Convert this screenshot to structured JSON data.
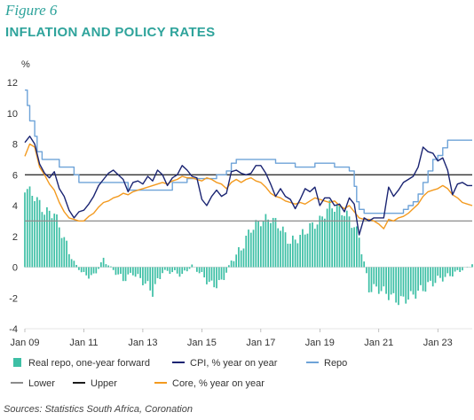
{
  "figure_label": "Figure 6",
  "title": "INFLATION AND POLICY RATES",
  "source": "Sources: Statistics South Africa, Coronation",
  "colors": {
    "bars": "#3dbfa5",
    "cpi": "#1a2472",
    "repo": "#6ea3d8",
    "lower": "#8c8c8c",
    "upper": "#1c1c1c",
    "core": "#f39a1f",
    "title": "#2ea39b"
  },
  "chart_data": {
    "type": "line",
    "title": "INFLATION AND POLICY RATES",
    "ylabel": "%",
    "ylim": [
      -4,
      12
    ],
    "yticks": [
      -4,
      -2,
      0,
      2,
      4,
      6,
      8,
      10,
      12
    ],
    "xlim": [
      "2009-01",
      "2024-03"
    ],
    "xticks": [
      "Jan 09",
      "Jan 11",
      "Jan 13",
      "Jan 15",
      "Jan 17",
      "Jan 19",
      "Jan 21",
      "Jan 23"
    ],
    "grid": false,
    "legend_position": "bottom",
    "reference_lines": [
      {
        "name": "Lower",
        "value": 3
      },
      {
        "name": "Upper",
        "value": 6
      }
    ],
    "series": [
      {
        "name": "Real repo, one-year forward",
        "type": "bar",
        "points": [
          [
            "2009-01",
            5.2
          ],
          [
            "2009-05",
            4.6
          ],
          [
            "2009-09",
            3.6
          ],
          [
            "2010-01",
            3.5
          ],
          [
            "2010-05",
            1.8
          ],
          [
            "2010-09",
            0.3
          ],
          [
            "2011-01",
            -0.5
          ],
          [
            "2011-05",
            -0.6
          ],
          [
            "2011-09",
            0.5
          ],
          [
            "2012-01",
            -0.2
          ],
          [
            "2012-05",
            -0.8
          ],
          [
            "2012-09",
            -0.4
          ],
          [
            "2013-01",
            -0.9
          ],
          [
            "2013-05",
            -1.6
          ],
          [
            "2013-09",
            -0.3
          ],
          [
            "2014-01",
            -0.3
          ],
          [
            "2014-05",
            -0.5
          ],
          [
            "2014-09",
            0.1
          ],
          [
            "2015-01",
            -0.5
          ],
          [
            "2015-05",
            -1.2
          ],
          [
            "2015-09",
            -1.0
          ],
          [
            "2016-01",
            0.4
          ],
          [
            "2016-05",
            1.2
          ],
          [
            "2016-09",
            2.5
          ],
          [
            "2017-01",
            3.0
          ],
          [
            "2017-05",
            3.2
          ],
          [
            "2017-09",
            2.6
          ],
          [
            "2018-01",
            1.6
          ],
          [
            "2018-05",
            2.0
          ],
          [
            "2018-09",
            2.6
          ],
          [
            "2019-01",
            3.0
          ],
          [
            "2019-05",
            4.0
          ],
          [
            "2019-09",
            3.8
          ],
          [
            "2020-01",
            3.2
          ],
          [
            "2020-05",
            2.0
          ],
          [
            "2020-09",
            -1.4
          ],
          [
            "2021-01",
            -1.4
          ],
          [
            "2021-05",
            -1.8
          ],
          [
            "2021-09",
            -2.2
          ],
          [
            "2022-01",
            -2.0
          ],
          [
            "2022-05",
            -1.6
          ],
          [
            "2022-09",
            -1.2
          ],
          [
            "2023-01",
            -0.8
          ],
          [
            "2023-05",
            -0.6
          ],
          [
            "2023-09",
            -0.3
          ],
          [
            "2024-01",
            0.0
          ],
          [
            "2024-03",
            0.2
          ]
        ]
      },
      {
        "name": "CPI, % year on year",
        "type": "line",
        "points": [
          [
            "2009-01",
            8.1
          ],
          [
            "2009-03",
            8.5
          ],
          [
            "2009-05",
            8.0
          ],
          [
            "2009-07",
            6.7
          ],
          [
            "2009-09",
            6.1
          ],
          [
            "2009-11",
            5.8
          ],
          [
            "2010-01",
            6.2
          ],
          [
            "2010-03",
            5.1
          ],
          [
            "2010-05",
            4.6
          ],
          [
            "2010-07",
            3.7
          ],
          [
            "2010-09",
            3.2
          ],
          [
            "2010-11",
            3.6
          ],
          [
            "2011-01",
            3.7
          ],
          [
            "2011-03",
            4.1
          ],
          [
            "2011-05",
            4.6
          ],
          [
            "2011-07",
            5.3
          ],
          [
            "2011-09",
            5.7
          ],
          [
            "2011-11",
            6.1
          ],
          [
            "2012-01",
            6.3
          ],
          [
            "2012-03",
            6.0
          ],
          [
            "2012-05",
            5.7
          ],
          [
            "2012-07",
            4.9
          ],
          [
            "2012-09",
            5.5
          ],
          [
            "2012-11",
            5.6
          ],
          [
            "2013-01",
            5.4
          ],
          [
            "2013-03",
            5.9
          ],
          [
            "2013-05",
            5.6
          ],
          [
            "2013-07",
            6.3
          ],
          [
            "2013-09",
            6.0
          ],
          [
            "2013-11",
            5.3
          ],
          [
            "2014-01",
            5.8
          ],
          [
            "2014-03",
            6.0
          ],
          [
            "2014-05",
            6.6
          ],
          [
            "2014-07",
            6.3
          ],
          [
            "2014-09",
            5.9
          ],
          [
            "2014-11",
            5.8
          ],
          [
            "2015-01",
            4.4
          ],
          [
            "2015-03",
            4.0
          ],
          [
            "2015-05",
            4.6
          ],
          [
            "2015-07",
            5.0
          ],
          [
            "2015-09",
            4.6
          ],
          [
            "2015-11",
            4.8
          ],
          [
            "2016-01",
            6.2
          ],
          [
            "2016-03",
            6.3
          ],
          [
            "2016-05",
            6.1
          ],
          [
            "2016-07",
            6.0
          ],
          [
            "2016-09",
            6.1
          ],
          [
            "2016-11",
            6.6
          ],
          [
            "2017-01",
            6.6
          ],
          [
            "2017-03",
            6.1
          ],
          [
            "2017-05",
            5.4
          ],
          [
            "2017-07",
            4.6
          ],
          [
            "2017-09",
            5.1
          ],
          [
            "2017-11",
            4.6
          ],
          [
            "2018-01",
            4.4
          ],
          [
            "2018-03",
            3.8
          ],
          [
            "2018-05",
            4.4
          ],
          [
            "2018-07",
            5.1
          ],
          [
            "2018-09",
            4.9
          ],
          [
            "2018-11",
            5.2
          ],
          [
            "2019-01",
            4.0
          ],
          [
            "2019-03",
            4.5
          ],
          [
            "2019-05",
            4.5
          ],
          [
            "2019-07",
            4.0
          ],
          [
            "2019-09",
            4.1
          ],
          [
            "2019-11",
            3.6
          ],
          [
            "2020-01",
            4.5
          ],
          [
            "2020-03",
            4.1
          ],
          [
            "2020-05",
            2.1
          ],
          [
            "2020-07",
            3.2
          ],
          [
            "2020-09",
            3.0
          ],
          [
            "2020-11",
            3.2
          ],
          [
            "2021-01",
            3.2
          ],
          [
            "2021-03",
            3.2
          ],
          [
            "2021-05",
            5.2
          ],
          [
            "2021-07",
            4.6
          ],
          [
            "2021-09",
            5.0
          ],
          [
            "2021-11",
            5.5
          ],
          [
            "2022-01",
            5.7
          ],
          [
            "2022-03",
            5.9
          ],
          [
            "2022-05",
            6.5
          ],
          [
            "2022-07",
            7.8
          ],
          [
            "2022-09",
            7.5
          ],
          [
            "2022-11",
            7.4
          ],
          [
            "2023-01",
            6.9
          ],
          [
            "2023-03",
            7.1
          ],
          [
            "2023-05",
            6.3
          ],
          [
            "2023-07",
            4.7
          ],
          [
            "2023-09",
            5.4
          ],
          [
            "2023-11",
            5.5
          ],
          [
            "2024-01",
            5.3
          ],
          [
            "2024-03",
            5.3
          ]
        ]
      },
      {
        "name": "Repo",
        "type": "line",
        "step": true,
        "points": [
          [
            "2009-01",
            11.5
          ],
          [
            "2009-02",
            10.5
          ],
          [
            "2009-03",
            9.5
          ],
          [
            "2009-05",
            8.5
          ],
          [
            "2009-06",
            7.5
          ],
          [
            "2009-08",
            7.0
          ],
          [
            "2010-03",
            6.5
          ],
          [
            "2010-09",
            6.0
          ],
          [
            "2010-11",
            5.5
          ],
          [
            "2012-07",
            5.0
          ],
          [
            "2014-01",
            5.5
          ],
          [
            "2014-07",
            5.75
          ],
          [
            "2015-07",
            6.0
          ],
          [
            "2015-11",
            6.25
          ],
          [
            "2016-01",
            6.75
          ],
          [
            "2016-03",
            7.0
          ],
          [
            "2017-07",
            6.75
          ],
          [
            "2018-03",
            6.5
          ],
          [
            "2018-11",
            6.75
          ],
          [
            "2019-07",
            6.5
          ],
          [
            "2020-01",
            6.25
          ],
          [
            "2020-03",
            5.25
          ],
          [
            "2020-04",
            4.25
          ],
          [
            "2020-05",
            3.75
          ],
          [
            "2020-07",
            3.5
          ],
          [
            "2021-11",
            3.75
          ],
          [
            "2022-01",
            4.0
          ],
          [
            "2022-03",
            4.25
          ],
          [
            "2022-05",
            4.75
          ],
          [
            "2022-07",
            5.5
          ],
          [
            "2022-09",
            6.25
          ],
          [
            "2022-11",
            7.0
          ],
          [
            "2023-01",
            7.25
          ],
          [
            "2023-03",
            7.75
          ],
          [
            "2023-05",
            8.25
          ],
          [
            "2024-03",
            8.25
          ]
        ]
      },
      {
        "name": "Core, % year on year",
        "type": "line",
        "points": [
          [
            "2009-01",
            7.2
          ],
          [
            "2009-03",
            8.0
          ],
          [
            "2009-05",
            7.8
          ],
          [
            "2009-07",
            6.5
          ],
          [
            "2009-09",
            6.0
          ],
          [
            "2009-11",
            5.4
          ],
          [
            "2010-01",
            5.0
          ],
          [
            "2010-03",
            4.2
          ],
          [
            "2010-05",
            3.6
          ],
          [
            "2010-07",
            3.2
          ],
          [
            "2010-09",
            3.1
          ],
          [
            "2010-11",
            3.0
          ],
          [
            "2011-01",
            3.0
          ],
          [
            "2011-03",
            3.3
          ],
          [
            "2011-05",
            3.5
          ],
          [
            "2011-07",
            3.9
          ],
          [
            "2011-09",
            4.2
          ],
          [
            "2011-11",
            4.3
          ],
          [
            "2012-01",
            4.5
          ],
          [
            "2012-03",
            4.6
          ],
          [
            "2012-05",
            4.8
          ],
          [
            "2012-07",
            4.7
          ],
          [
            "2012-09",
            4.9
          ],
          [
            "2012-11",
            5.0
          ],
          [
            "2013-01",
            5.1
          ],
          [
            "2013-03",
            5.2
          ],
          [
            "2013-05",
            5.3
          ],
          [
            "2013-07",
            5.4
          ],
          [
            "2013-09",
            5.5
          ],
          [
            "2013-11",
            5.4
          ],
          [
            "2014-01",
            5.6
          ],
          [
            "2014-03",
            5.7
          ],
          [
            "2014-05",
            5.9
          ],
          [
            "2014-07",
            5.8
          ],
          [
            "2014-09",
            5.8
          ],
          [
            "2014-11",
            5.7
          ],
          [
            "2015-01",
            5.6
          ],
          [
            "2015-03",
            5.8
          ],
          [
            "2015-05",
            5.7
          ],
          [
            "2015-07",
            5.5
          ],
          [
            "2015-09",
            5.4
          ],
          [
            "2015-11",
            5.1
          ],
          [
            "2016-01",
            5.5
          ],
          [
            "2016-03",
            5.7
          ],
          [
            "2016-05",
            5.5
          ],
          [
            "2016-07",
            5.7
          ],
          [
            "2016-09",
            5.8
          ],
          [
            "2016-11",
            5.6
          ],
          [
            "2017-01",
            5.5
          ],
          [
            "2017-03",
            5.2
          ],
          [
            "2017-05",
            4.8
          ],
          [
            "2017-07",
            4.6
          ],
          [
            "2017-09",
            4.5
          ],
          [
            "2017-11",
            4.3
          ],
          [
            "2018-01",
            4.2
          ],
          [
            "2018-03",
            4.1
          ],
          [
            "2018-05",
            4.2
          ],
          [
            "2018-07",
            4.1
          ],
          [
            "2018-09",
            4.3
          ],
          [
            "2018-11",
            4.5
          ],
          [
            "2019-01",
            4.4
          ],
          [
            "2019-03",
            4.3
          ],
          [
            "2019-05",
            4.2
          ],
          [
            "2019-07",
            4.3
          ],
          [
            "2019-09",
            4.0
          ],
          [
            "2019-11",
            3.8
          ],
          [
            "2020-01",
            4.0
          ],
          [
            "2020-03",
            3.6
          ],
          [
            "2020-05",
            3.2
          ],
          [
            "2020-07",
            3.1
          ],
          [
            "2020-09",
            3.1
          ],
          [
            "2020-11",
            3.0
          ],
          [
            "2021-01",
            2.8
          ],
          [
            "2021-03",
            2.5
          ],
          [
            "2021-05",
            3.1
          ],
          [
            "2021-07",
            3.0
          ],
          [
            "2021-09",
            3.2
          ],
          [
            "2021-11",
            3.3
          ],
          [
            "2022-01",
            3.5
          ],
          [
            "2022-03",
            3.8
          ],
          [
            "2022-05",
            4.1
          ],
          [
            "2022-07",
            4.6
          ],
          [
            "2022-09",
            4.9
          ],
          [
            "2022-11",
            5.0
          ],
          [
            "2023-01",
            5.1
          ],
          [
            "2023-03",
            5.3
          ],
          [
            "2023-05",
            5.1
          ],
          [
            "2023-07",
            4.7
          ],
          [
            "2023-09",
            4.5
          ],
          [
            "2023-11",
            4.2
          ],
          [
            "2024-01",
            4.1
          ],
          [
            "2024-03",
            4.0
          ]
        ]
      },
      {
        "name": "Lower",
        "type": "hline",
        "value": 3
      },
      {
        "name": "Upper",
        "type": "hline",
        "value": 6
      }
    ]
  }
}
